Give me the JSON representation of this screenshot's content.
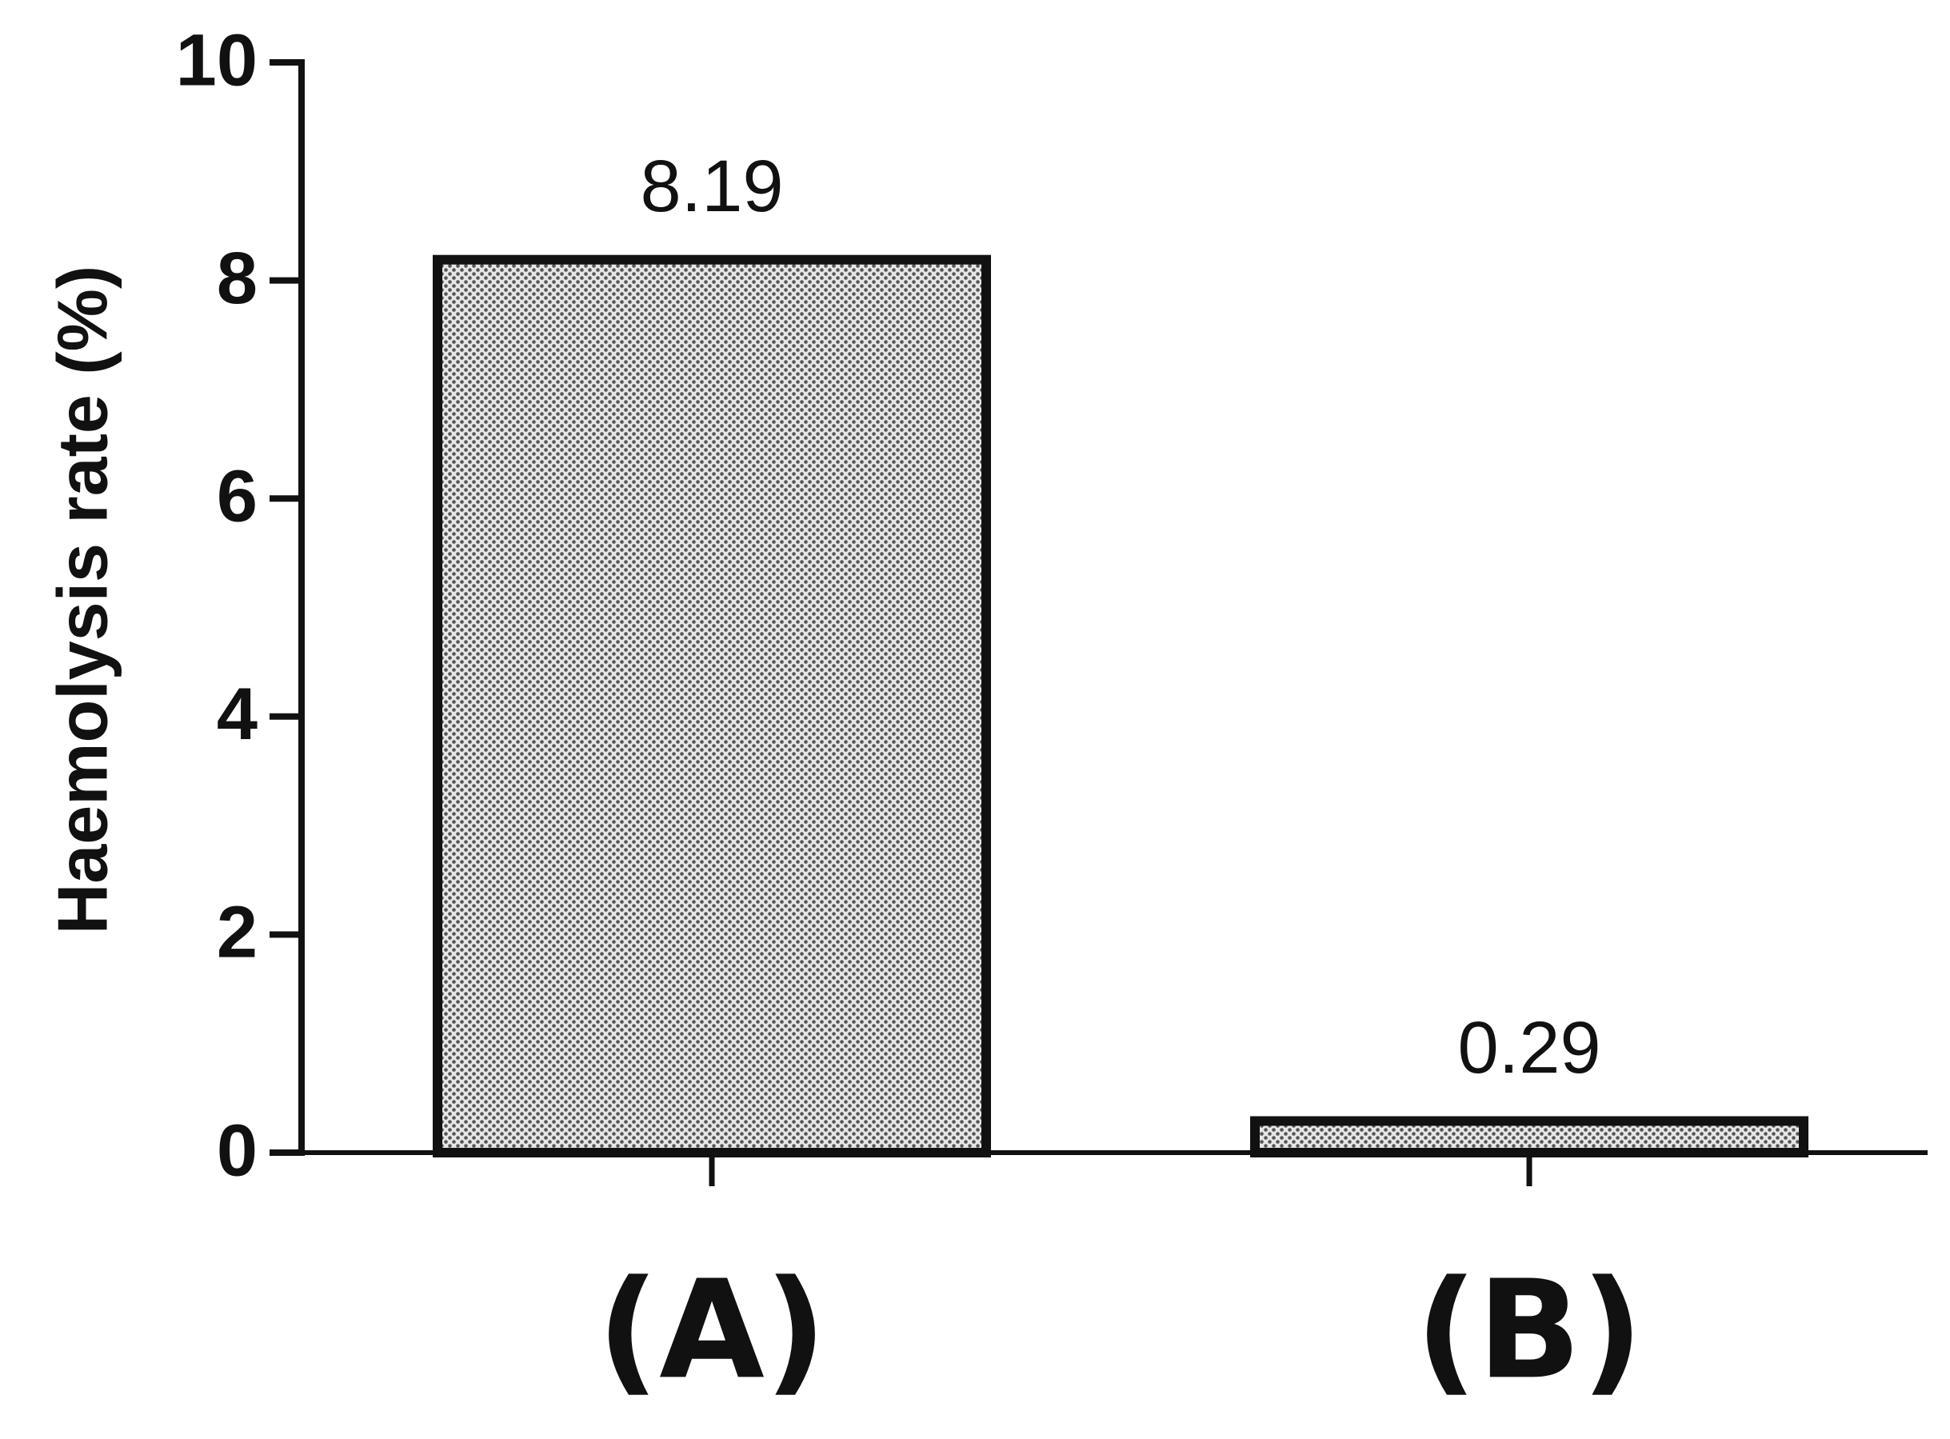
{
  "chart_data": {
    "type": "bar",
    "y_label": "Haemolysis rate (%)",
    "categories": [
      "(A)",
      "(B)"
    ],
    "values": [
      8.19,
      0.29
    ],
    "color": "#555555",
    "ylim": [
      0,
      10
    ],
    "yticks": [
      0,
      2,
      4,
      6,
      8,
      10
    ],
    "grid": false
  }
}
